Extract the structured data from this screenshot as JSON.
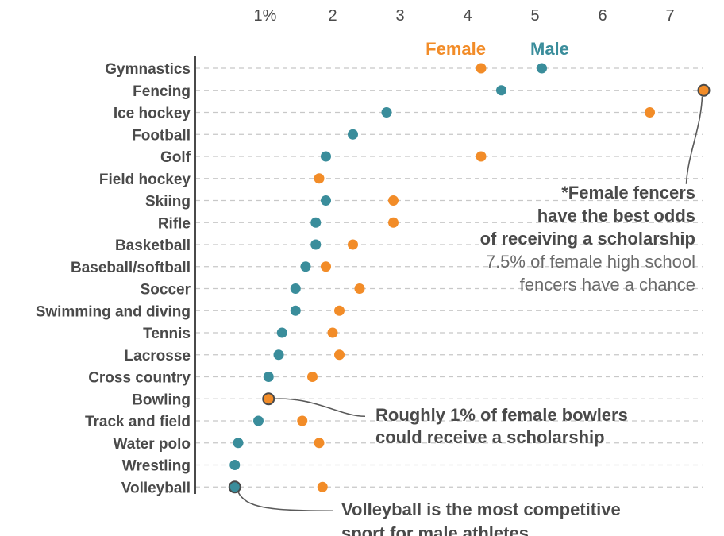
{
  "chart_data": {
    "type": "scatter",
    "x_ticks": [
      1,
      2,
      3,
      4,
      5,
      6,
      7
    ],
    "x_tick_labels": [
      "1%",
      "2",
      "3",
      "4",
      "5",
      "6",
      "7"
    ],
    "xlim": [
      0,
      7.5
    ],
    "grid": "dashed row guides",
    "legend_placement": "top-right",
    "categories": [
      "Gymnastics",
      "Fencing",
      "Ice hockey",
      "Football",
      "Golf",
      "Field hockey",
      "Skiing",
      "Rifle",
      "Basketball",
      "Baseball/softball",
      "Soccer",
      "Swimming and diving",
      "Tennis",
      "Lacrosse",
      "Cross country",
      "Bowling",
      "Track and field",
      "Water polo",
      "Wrestling",
      "Volleyball"
    ],
    "series": [
      {
        "name": "Female",
        "color": "#F28C28",
        "values": [
          4.2,
          7.5,
          6.7,
          null,
          4.2,
          1.8,
          2.9,
          2.9,
          2.3,
          1.9,
          2.4,
          2.1,
          2.0,
          2.1,
          1.7,
          1.05,
          1.55,
          1.8,
          null,
          1.85
        ]
      },
      {
        "name": "Male",
        "color": "#3A8D9B",
        "values": [
          5.1,
          4.5,
          2.8,
          2.3,
          1.9,
          null,
          1.9,
          1.75,
          1.75,
          1.6,
          1.45,
          1.45,
          1.25,
          1.2,
          1.05,
          null,
          0.9,
          0.6,
          0.55,
          0.55
        ]
      }
    ],
    "highlighted_points": [
      {
        "series": "Female",
        "category": "Fencing"
      },
      {
        "series": "Female",
        "category": "Bowling"
      },
      {
        "series": "Male",
        "category": "Volleyball"
      }
    ],
    "annotations": [
      {
        "id": "fencing",
        "bold_lines": [
          "*Female fencers",
          "have the best odds",
          "of receiving a scholarship"
        ],
        "light_lines": [
          "7.5% of female high school",
          "fencers have a chance"
        ]
      },
      {
        "id": "bowling",
        "bold_lines": [
          "Roughly 1% of female bowlers",
          "could receive a scholarship"
        ],
        "light_lines": []
      },
      {
        "id": "volleyball",
        "bold_lines": [
          "Volleyball is the most competitive",
          "sport for male athletes"
        ],
        "light_lines": []
      }
    ],
    "colors": {
      "female": "#F28C28",
      "male": "#3A8D9B",
      "text": "#4a4a4a",
      "light_text": "#6a6a6a",
      "guide": "#c8c8c8",
      "axis": "#4a4a4a",
      "connector": "#5a5a5a"
    }
  }
}
